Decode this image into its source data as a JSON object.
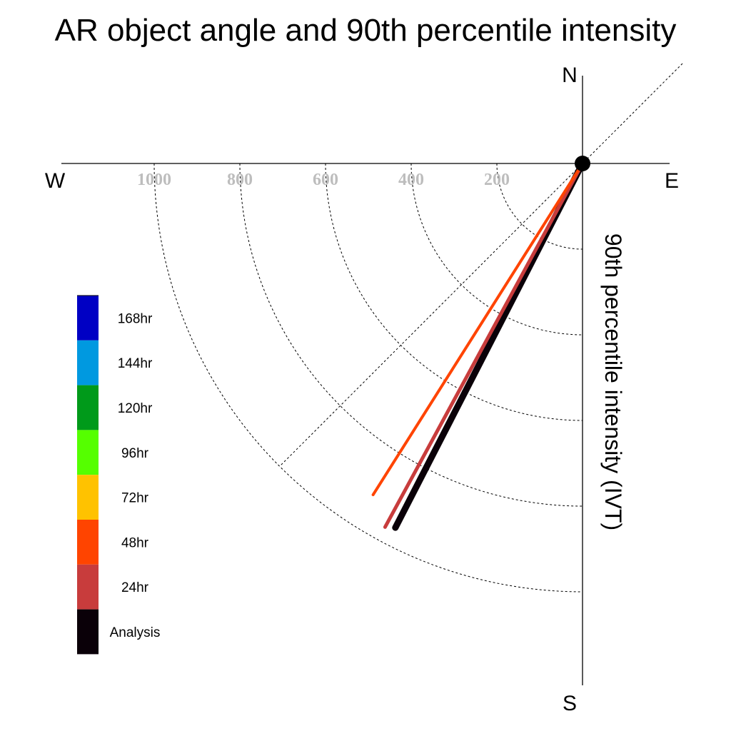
{
  "chart_data": {
    "type": "polar-line",
    "title": "AR object angle and 90th percentile intensity",
    "ylabel": "90th percentile intensity (IVT)",
    "directions": {
      "north": "N",
      "south": "S",
      "east": "E",
      "west": "W"
    },
    "rlim": [
      0,
      1200
    ],
    "rings": [
      200,
      400,
      600,
      800,
      1000
    ],
    "tick_labels": [
      "1000",
      "800",
      "600",
      "400",
      "200"
    ],
    "series": [
      {
        "name": "Analysis",
        "angle_deg": 207.2,
        "value": 956,
        "color": "#0a0008"
      },
      {
        "name": "24hr",
        "angle_deg": 208.5,
        "value": 966,
        "color": "#c83c3c"
      },
      {
        "name": "48hr",
        "angle_deg": 212.3,
        "value": 915,
        "color": "#ff4400"
      }
    ],
    "legend": {
      "placement": "left",
      "entries": [
        {
          "label": "168hr",
          "color": "#0000c4"
        },
        {
          "label": "144hr",
          "color": "#0099e0"
        },
        {
          "label": "120hr",
          "color": "#009a1a"
        },
        {
          "label": "96hr",
          "color": "#55ff00"
        },
        {
          "label": "72hr",
          "color": "#ffc200"
        },
        {
          "label": "48hr",
          "color": "#ff4400"
        },
        {
          "label": "24hr",
          "color": "#c83c3c"
        },
        {
          "label": "Analysis",
          "color": "#0a0008"
        }
      ]
    }
  }
}
